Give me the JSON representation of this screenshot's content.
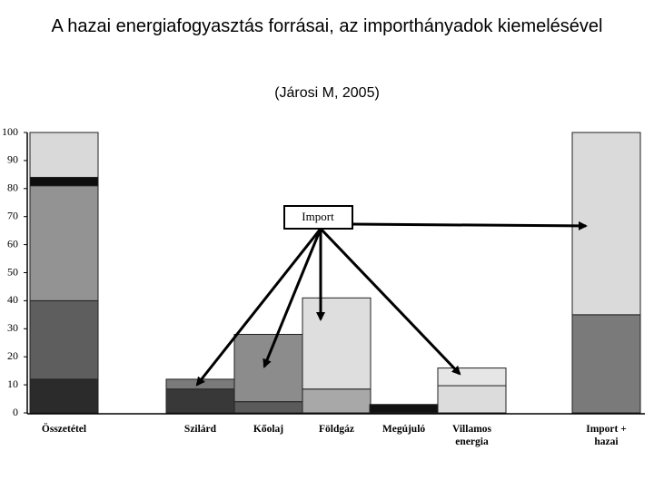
{
  "chart_data": {
    "type": "bar",
    "stacked": true,
    "title": "A hazai energiafogyasztás forrásai, az importhányadok kiemelésével",
    "subtitle": "(Járosi M, 2005)",
    "annotation": "Import",
    "categories": [
      "Összetétel",
      "Szilárd",
      "Kőolaj",
      "Földgáz",
      "Megújuló",
      "Villamos energia",
      "Import + hazai"
    ],
    "series": [
      {
        "colors": [
          "#2b2b2b",
          "#383838",
          "#5a5a5a",
          "#a8a8a8",
          "#111111",
          "#dcdcdc",
          "#7a7a7a"
        ],
        "values": [
          12,
          8.5,
          4,
          8.5,
          3,
          9.7,
          35
        ]
      },
      {
        "colors": [
          "#5e5e5e",
          "#7a7a7a",
          "#8c8c8c",
          "#dedede",
          "#111111",
          "#e6e6e6",
          "#dadada"
        ],
        "values": [
          28,
          3.5,
          24,
          32.5,
          null,
          6.3,
          65
        ]
      },
      {
        "colors": [
          "#939393",
          "#939393",
          "#939393",
          "#939393",
          "#939393",
          "#939393",
          "#939393"
        ],
        "values": [
          41,
          null,
          null,
          null,
          null,
          null,
          null
        ]
      },
      {
        "colors": [
          "#0e0e0e",
          "#0e0e0e",
          "#0e0e0e",
          "#0e0e0e",
          "#0e0e0e",
          "#0e0e0e",
          "#0e0e0e"
        ],
        "values": [
          3,
          null,
          null,
          null,
          null,
          null,
          null
        ]
      },
      {
        "colors": [
          "#d9d9d9",
          "#d9d9d9",
          "#d9d9d9",
          "#d9d9d9",
          "#d9d9d9",
          "#d9d9d9",
          "#d9d9d9"
        ],
        "values": [
          16,
          null,
          null,
          null,
          null,
          null,
          null
        ]
      }
    ],
    "ylim": [
      0,
      100
    ],
    "yticks": [
      0,
      10,
      20,
      30,
      40,
      50,
      60,
      70,
      80,
      90,
      100
    ],
    "grid": false
  }
}
